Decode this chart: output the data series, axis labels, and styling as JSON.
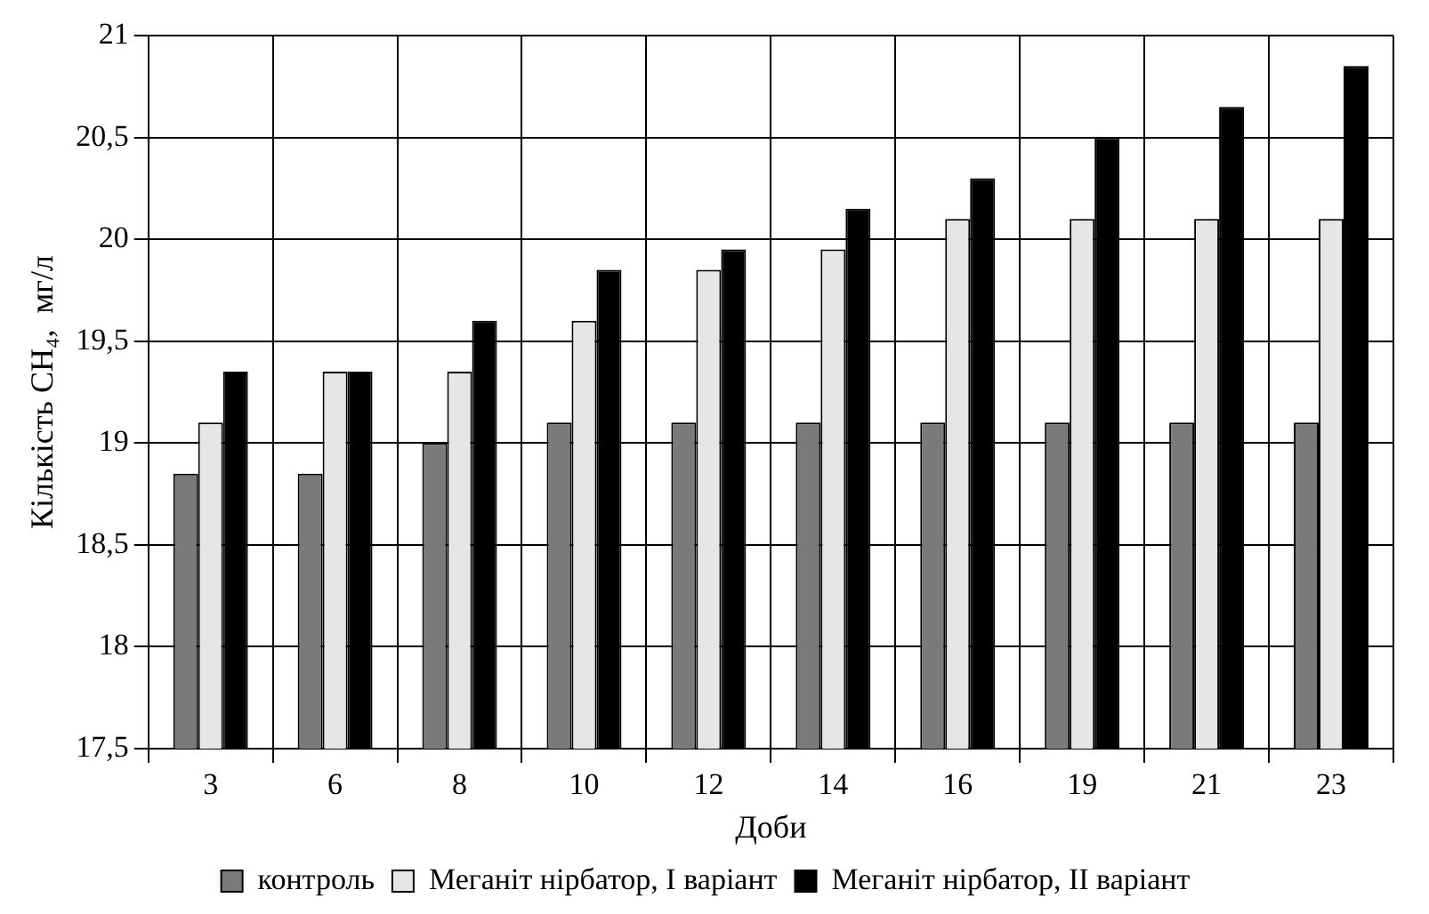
{
  "chart_data": {
    "type": "bar",
    "xlabel": "Доби",
    "ylabel": "Кількість CH₄,  мг/л",
    "categories": [
      "3",
      "6",
      "8",
      "10",
      "12",
      "14",
      "16",
      "19",
      "21",
      "23"
    ],
    "series": [
      {
        "name": "контроль",
        "color": "#7a7a7a",
        "values": [
          18.85,
          18.85,
          19.0,
          19.1,
          19.1,
          19.1,
          19.1,
          19.1,
          19.1,
          19.1
        ]
      },
      {
        "name": "Меганіт нірбатор, I варіант",
        "color": "#e6e6e6",
        "values": [
          19.1,
          19.35,
          19.35,
          19.6,
          19.85,
          19.95,
          20.1,
          20.1,
          20.1,
          20.1
        ]
      },
      {
        "name": "Меганіт нірбатор, II варіант",
        "color": "#000000",
        "values": [
          19.35,
          19.35,
          19.6,
          19.85,
          19.95,
          20.15,
          20.3,
          20.5,
          20.65,
          20.85
        ]
      }
    ],
    "ylim": [
      17.5,
      21
    ],
    "yticks": [
      {
        "value": 17.5,
        "label": "17,5"
      },
      18,
      {
        "value": 18.5,
        "label": "18,5"
      },
      19,
      {
        "value": 19.5,
        "label": "19,5"
      },
      20,
      {
        "value": 20.5,
        "label": "20,5"
      },
      21
    ],
    "grid": true,
    "legend": "bottom"
  }
}
